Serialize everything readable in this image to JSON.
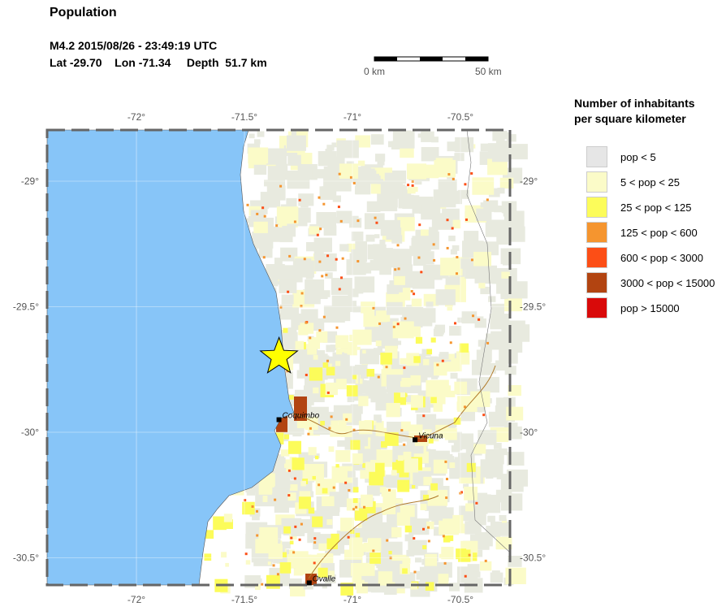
{
  "title": "Population",
  "event": {
    "line1": "M4.2  2015/08/26 - 23:49:19 UTC",
    "line2": "Lat -29.70    Lon -71.34     Depth  51.7 km",
    "lat": -29.7,
    "lon": -71.34
  },
  "scalebar": {
    "start": "0 km",
    "end": "50 km"
  },
  "legend": {
    "title1": "Number of inhabitants",
    "title2": "per square kilometer",
    "items": [
      {
        "label": "pop < 5",
        "color": "#e6e6e6"
      },
      {
        "label": "5 < pop < 25",
        "color": "#fbfbc8"
      },
      {
        "label": "25 < pop < 125",
        "color": "#fcfc5a"
      },
      {
        "label": "125 < pop < 600",
        "color": "#f5952f"
      },
      {
        "label": "600 < pop < 3000",
        "color": "#fc4e16"
      },
      {
        "label": "3000 < pop < 15000",
        "color": "#b24411"
      },
      {
        "label": "pop > 15000",
        "color": "#d90a0a"
      }
    ]
  },
  "axes": {
    "lon_ticks": [
      {
        "v": -72,
        "label": "-72°"
      },
      {
        "v": -71.5,
        "label": "-71.5°"
      },
      {
        "v": -71,
        "label": "-71°"
      },
      {
        "v": -70.5,
        "label": "-70.5°"
      }
    ],
    "lat_ticks": [
      {
        "v": -29,
        "label": "-29°"
      },
      {
        "v": -29.5,
        "label": "-29.5°"
      },
      {
        "v": -30,
        "label": "-30°"
      },
      {
        "v": -30.5,
        "label": "-30.5°"
      }
    ]
  },
  "cities": [
    {
      "name": "Coquimbo",
      "lon": -71.34,
      "lat": -29.95
    },
    {
      "name": "Vicuna",
      "lon": -70.71,
      "lat": -30.03
    },
    {
      "name": "Ovalle",
      "lon": -71.2,
      "lat": -30.6
    }
  ],
  "colors": {
    "ocean": "#87c5f8",
    "land": "#ffffff",
    "epicenter": "#ffff00"
  }
}
